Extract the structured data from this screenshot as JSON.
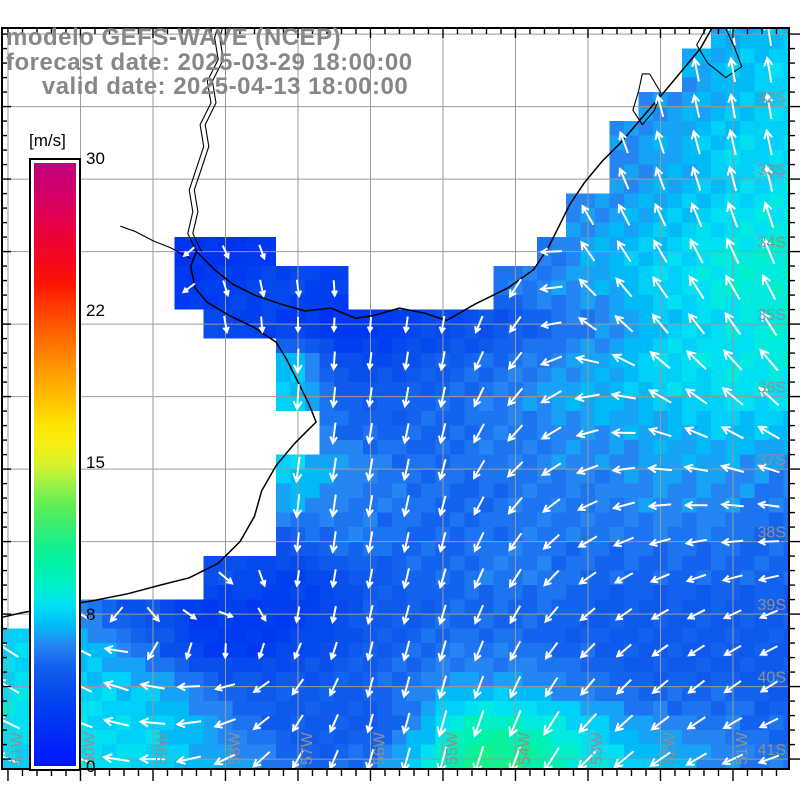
{
  "title": {
    "line1": "modelo GEFS-WAVE (NCEP)",
    "line2": "forecast date: 2025-03-29 18:00:00",
    "line3": "     valid date: 2025-04-13 18:00:00"
  },
  "colorbar": {
    "unit": "[m/s]",
    "min": 0,
    "max": 30,
    "tick_labels": [
      "0",
      "8",
      "15",
      "22",
      "30"
    ],
    "stops": [
      [
        0,
        "#0014FF"
      ],
      [
        2,
        "#0032F2"
      ],
      [
        3,
        "#0040F0"
      ],
      [
        4,
        "#0A4FEC"
      ],
      [
        5,
        "#1463EE"
      ],
      [
        6,
        "#2585F2"
      ],
      [
        6.5,
        "#16A2F5"
      ],
      [
        7,
        "#00BAF7"
      ],
      [
        7.5,
        "#00CFF7"
      ],
      [
        8,
        "#00E0F2"
      ],
      [
        8.5,
        "#00EADF"
      ],
      [
        9,
        "#00EFC8"
      ],
      [
        10,
        "#00F2A8"
      ],
      [
        11,
        "#14F08C"
      ],
      [
        12,
        "#3AEE6E"
      ],
      [
        13,
        "#5FEF55"
      ],
      [
        14,
        "#9CF145"
      ],
      [
        15,
        "#D8F22E"
      ],
      [
        16,
        "#F6EF14"
      ],
      [
        17,
        "#FFE400"
      ],
      [
        18,
        "#FFC800"
      ],
      [
        19,
        "#FFAC00"
      ],
      [
        20,
        "#FF9000"
      ],
      [
        21,
        "#FF7300"
      ],
      [
        22,
        "#FF5500"
      ],
      [
        23,
        "#FF3600"
      ],
      [
        24,
        "#FC1403"
      ],
      [
        25,
        "#F50A18"
      ],
      [
        26,
        "#EE0430"
      ],
      [
        27,
        "#E60048"
      ],
      [
        28,
        "#D80060"
      ],
      [
        29,
        "#CC0070"
      ],
      [
        30,
        "#C1007E"
      ]
    ]
  },
  "map": {
    "lat_labels": [
      {
        "v": -32,
        "t": "32S"
      },
      {
        "v": -33,
        "t": "33S"
      },
      {
        "v": -34,
        "t": "34S"
      },
      {
        "v": -35,
        "t": "35S"
      },
      {
        "v": -36,
        "t": "36S"
      },
      {
        "v": -37,
        "t": "37S"
      },
      {
        "v": -38,
        "t": "38S"
      },
      {
        "v": -39,
        "t": "39S"
      },
      {
        "v": -40,
        "t": "40S"
      },
      {
        "v": -41,
        "t": "41S"
      }
    ],
    "lon_labels": [
      {
        "v": -61,
        "t": "61W"
      },
      {
        "v": -60,
        "t": "60W"
      },
      {
        "v": -59,
        "t": "59W"
      },
      {
        "v": -58,
        "t": "58W"
      },
      {
        "v": -57,
        "t": "57W"
      },
      {
        "v": -56,
        "t": "56W"
      },
      {
        "v": -55,
        "t": "55W"
      },
      {
        "v": -54,
        "t": "54W"
      },
      {
        "v": -53,
        "t": "53W"
      },
      {
        "v": -52,
        "t": "52W"
      },
      {
        "v": -51,
        "t": "51W"
      }
    ],
    "colors": {
      "grid": "#9a9a9a",
      "label": "#8f8f8f",
      "coast": "#000000",
      "arrow": "#ffffff",
      "land": "#ffffff",
      "frame": "#000000"
    }
  },
  "chart_data": {
    "type": "heatmap",
    "title": "modelo GEFS-WAVE (NCEP)",
    "xlabel": "longitude",
    "ylabel": "latitude",
    "unit": "m/s",
    "legend_position": "left colorbar 0-30 m/s",
    "grid": "on",
    "lons": [
      -61,
      -60.5,
      -60,
      -59.5,
      -59,
      -58.5,
      -58,
      -57.5,
      -57,
      -56.5,
      -56,
      -55.5,
      -55,
      -54.5,
      -54,
      -53.5,
      -53,
      -52.5,
      -52,
      -51.5,
      -51,
      -50.5,
      -50
    ],
    "lats": [
      -31,
      -31.5,
      -32,
      -32.5,
      -33,
      -33.5,
      -34,
      -34.5,
      -35,
      -35.5,
      -36,
      -36.5,
      -37,
      -37.5,
      -38,
      -38.5,
      -39,
      -39.5,
      -40,
      -40.5,
      -41
    ],
    "speed": [
      [
        null,
        null,
        null,
        null,
        null,
        null,
        null,
        null,
        null,
        null,
        null,
        null,
        null,
        null,
        null,
        null,
        null,
        null,
        null,
        null,
        6.5,
        7,
        7.5
      ],
      [
        null,
        null,
        null,
        null,
        null,
        null,
        null,
        null,
        null,
        null,
        null,
        null,
        null,
        null,
        null,
        null,
        null,
        null,
        null,
        6.5,
        7,
        7.5,
        7.5
      ],
      [
        null,
        null,
        null,
        null,
        null,
        null,
        null,
        null,
        null,
        null,
        null,
        null,
        null,
        null,
        null,
        null,
        null,
        null,
        6,
        6.5,
        7,
        7.5,
        7.5
      ],
      [
        null,
        null,
        null,
        null,
        null,
        null,
        null,
        null,
        null,
        null,
        null,
        null,
        null,
        null,
        null,
        null,
        null,
        6,
        6.5,
        7,
        7.5,
        7.5,
        8
      ],
      [
        null,
        null,
        null,
        null,
        null,
        null,
        null,
        null,
        null,
        null,
        null,
        null,
        null,
        null,
        null,
        null,
        null,
        6,
        6.5,
        7,
        7.5,
        8,
        8
      ],
      [
        null,
        null,
        null,
        null,
        null,
        null,
        null,
        null,
        null,
        null,
        null,
        null,
        null,
        null,
        null,
        null,
        6,
        6.5,
        7,
        7.5,
        8,
        8,
        8.5
      ],
      [
        null,
        null,
        null,
        null,
        null,
        2,
        2,
        2.5,
        null,
        null,
        null,
        null,
        null,
        null,
        null,
        5.5,
        6.5,
        7,
        7.5,
        8,
        8.5,
        8.5,
        9
      ],
      [
        null,
        null,
        null,
        null,
        null,
        2.5,
        3,
        3.5,
        3.5,
        3,
        null,
        null,
        null,
        null,
        5.5,
        6,
        6.5,
        7,
        7.5,
        8,
        8.5,
        8.5,
        9
      ],
      [
        null,
        null,
        null,
        null,
        null,
        null,
        3.5,
        3,
        2.5,
        2,
        2.5,
        3,
        3.5,
        4,
        4.5,
        5,
        5.5,
        6.5,
        7,
        7.5,
        8,
        8.5,
        9
      ],
      [
        null,
        null,
        null,
        null,
        null,
        null,
        null,
        null,
        7,
        4,
        3.5,
        4,
        4.5,
        5,
        5.5,
        6,
        6.5,
        7,
        7.5,
        8,
        8,
        8.5,
        8.5
      ],
      [
        null,
        null,
        null,
        null,
        null,
        null,
        null,
        null,
        7.5,
        5,
        4.5,
        5,
        5,
        5.5,
        6,
        6.5,
        7,
        7,
        7.5,
        7.5,
        8,
        8,
        8
      ],
      [
        null,
        null,
        null,
        null,
        null,
        null,
        null,
        null,
        null,
        5.5,
        5,
        5,
        5,
        5.5,
        5.5,
        6,
        6,
        6.5,
        6.5,
        7,
        7,
        7,
        7
      ],
      [
        null,
        null,
        null,
        null,
        null,
        null,
        null,
        null,
        7.5,
        6.5,
        6,
        5.5,
        5.5,
        5.5,
        5.5,
        6,
        6,
        6,
        6.5,
        6.5,
        6.5,
        6,
        6
      ],
      [
        null,
        null,
        null,
        null,
        null,
        null,
        null,
        null,
        6.5,
        6,
        5.5,
        5.5,
        5,
        5,
        5.5,
        5.5,
        5.5,
        6,
        6,
        6,
        6,
        5.5,
        5.5
      ],
      [
        null,
        null,
        null,
        null,
        null,
        null,
        null,
        null,
        4.5,
        5.5,
        5.5,
        5,
        5,
        5.5,
        5.5,
        5.5,
        5.5,
        5.5,
        5.5,
        5.5,
        5.5,
        5,
        5
      ],
      [
        null,
        null,
        null,
        null,
        null,
        null,
        4,
        3.5,
        3,
        4,
        4.5,
        5,
        5,
        5.5,
        5.5,
        5.5,
        5,
        5,
        5,
        5,
        5,
        5,
        5
      ],
      [
        null,
        6.5,
        6,
        4.5,
        4,
        3,
        2.5,
        2.5,
        3,
        3.5,
        4.5,
        4.5,
        5,
        5,
        5,
        5,
        4.5,
        4.5,
        4.5,
        4.5,
        4.5,
        4.5,
        4.5
      ],
      [
        7.5,
        7.5,
        7,
        6.5,
        5,
        3.5,
        2.5,
        3,
        3.5,
        4,
        4.5,
        5,
        5.5,
        5.5,
        5.5,
        5,
        5,
        4.5,
        4.5,
        4.5,
        4.5,
        4.5,
        4.5
      ],
      [
        8,
        8,
        7.5,
        7.5,
        7,
        6,
        5,
        4.5,
        4.5,
        4.5,
        5,
        5.5,
        6.5,
        6.5,
        6.5,
        6,
        5.5,
        5,
        5,
        5,
        5,
        4.5,
        4.5
      ],
      [
        8,
        8,
        8,
        7.5,
        7.5,
        7,
        6,
        5,
        4.5,
        4.5,
        4.5,
        5.5,
        8,
        9.5,
        9,
        8.5,
        7.5,
        6.5,
        6,
        5.5,
        5.5,
        5,
        5
      ],
      [
        7.5,
        8,
        8,
        8,
        7.5,
        7,
        6.5,
        6,
        5,
        5,
        5.5,
        7,
        9,
        11.5,
        11,
        9.5,
        8.5,
        7.5,
        7,
        6.5,
        6,
        5.5,
        5.5
      ]
    ],
    "dir_lons": [
      -61,
      -60,
      -59,
      -58,
      -57,
      -56,
      -55,
      -54,
      -53,
      -52,
      -51,
      -50
    ],
    "dir_lats": [
      -31,
      -32,
      -33,
      -34,
      -35,
      -36,
      -37,
      -38,
      -39,
      -40,
      -41
    ],
    "dir_toward_deg": [
      [
        310,
        310,
        310,
        330,
        150,
        155,
        170,
        340,
        345,
        350,
        350,
        352
      ],
      [
        310,
        310,
        310,
        335,
        160,
        165,
        175,
        335,
        340,
        345,
        350,
        350
      ],
      [
        305,
        305,
        310,
        340,
        165,
        170,
        180,
        330,
        335,
        340,
        345,
        348
      ],
      [
        300,
        300,
        305,
        155,
        165,
        175,
        185,
        210,
        325,
        330,
        335,
        340
      ],
      [
        300,
        300,
        300,
        170,
        180,
        185,
        190,
        215,
        305,
        320,
        325,
        330
      ],
      [
        300,
        300,
        295,
        180,
        184,
        188,
        192,
        220,
        260,
        300,
        310,
        315
      ],
      [
        300,
        295,
        290,
        185,
        187,
        190,
        195,
        225,
        250,
        275,
        285,
        290
      ],
      [
        300,
        295,
        220,
        150,
        186,
        190,
        195,
        215,
        240,
        255,
        265,
        270
      ],
      [
        305,
        300,
        140,
        110,
        190,
        193,
        197,
        210,
        230,
        240,
        245,
        250
      ],
      [
        300,
        295,
        280,
        255,
        215,
        195,
        196,
        205,
        220,
        230,
        235,
        240
      ],
      [
        292,
        288,
        270,
        245,
        210,
        196,
        195,
        200,
        225,
        235,
        245,
        255
      ]
    ]
  },
  "geo": {
    "coast": [
      [
        -51.28,
        -30.9
      ],
      [
        -51.45,
        -31.2
      ],
      [
        -51.7,
        -31.5
      ],
      [
        -51.95,
        -31.8
      ],
      [
        -52.25,
        -32.15
      ],
      [
        -52.55,
        -32.5
      ],
      [
        -52.8,
        -32.75
      ],
      [
        -53.05,
        -33.05
      ],
      [
        -53.25,
        -33.35
      ],
      [
        -53.4,
        -33.65
      ],
      [
        -53.55,
        -33.95
      ],
      [
        -53.75,
        -34.25
      ],
      [
        -54.1,
        -34.5
      ],
      [
        -54.55,
        -34.72
      ],
      [
        -54.95,
        -34.95
      ],
      [
        -55.25,
        -34.85
      ],
      [
        -55.6,
        -34.78
      ],
      [
        -55.95,
        -34.88
      ],
      [
        -56.2,
        -34.92
      ],
      [
        -56.55,
        -34.78
      ],
      [
        -56.9,
        -34.82
      ],
      [
        -57.25,
        -34.72
      ],
      [
        -57.6,
        -34.6
      ],
      [
        -57.9,
        -34.45
      ],
      [
        -58.15,
        -34.25
      ],
      [
        -58.4,
        -34.0
      ],
      [
        -58.48,
        -34.2
      ],
      [
        -58.42,
        -34.5
      ],
      [
        -58.25,
        -34.7
      ],
      [
        -57.95,
        -34.88
      ],
      [
        -57.6,
        -35.05
      ],
      [
        -57.3,
        -35.25
      ],
      [
        -57.15,
        -35.5
      ],
      [
        -57.0,
        -35.8
      ],
      [
        -56.85,
        -36.1
      ],
      [
        -56.75,
        -36.35
      ],
      [
        -56.9,
        -36.5
      ],
      [
        -57.05,
        -36.65
      ],
      [
        -57.3,
        -36.95
      ],
      [
        -57.5,
        -37.3
      ],
      [
        -57.6,
        -37.65
      ],
      [
        -57.8,
        -38.0
      ],
      [
        -58.1,
        -38.3
      ],
      [
        -58.5,
        -38.5
      ],
      [
        -58.9,
        -38.6
      ],
      [
        -59.35,
        -38.72
      ],
      [
        -59.85,
        -38.82
      ],
      [
        -60.35,
        -38.9
      ],
      [
        -60.8,
        -38.98
      ],
      [
        -61.15,
        -39.06
      ]
    ],
    "rivers": [
      [
        [
          -58.4,
          -34.0
        ],
        [
          -58.52,
          -33.75
        ],
        [
          -58.45,
          -33.45
        ],
        [
          -58.5,
          -33.15
        ],
        [
          -58.4,
          -32.85
        ],
        [
          -58.3,
          -32.55
        ],
        [
          -58.35,
          -32.25
        ],
        [
          -58.2,
          -31.95
        ],
        [
          -58.25,
          -31.65
        ],
        [
          -58.1,
          -31.35
        ],
        [
          -58.15,
          -31.05
        ],
        [
          -58.1,
          -30.88
        ]
      ],
      [
        [
          -58.33,
          -34.0
        ],
        [
          -58.45,
          -33.75
        ],
        [
          -58.38,
          -33.45
        ],
        [
          -58.43,
          -33.15
        ],
        [
          -58.33,
          -32.85
        ],
        [
          -58.23,
          -32.55
        ],
        [
          -58.28,
          -32.25
        ],
        [
          -58.13,
          -31.95
        ],
        [
          -58.18,
          -31.65
        ],
        [
          -58.03,
          -31.35
        ],
        [
          -58.08,
          -31.05
        ],
        [
          -58.03,
          -30.88
        ]
      ],
      [
        [
          -58.48,
          -34.1
        ],
        [
          -58.75,
          -33.95
        ],
        [
          -59.0,
          -33.85
        ],
        [
          -59.25,
          -33.72
        ],
        [
          -59.45,
          -33.65
        ]
      ]
    ],
    "lagoons": [
      [
        [
          -51.35,
          -30.88
        ],
        [
          -51.5,
          -31.15
        ],
        [
          -51.35,
          -31.4
        ],
        [
          -51.1,
          -31.6
        ],
        [
          -50.88,
          -31.45
        ],
        [
          -50.98,
          -31.18
        ],
        [
          -51.12,
          -30.88
        ]
      ],
      [
        [
          -52.15,
          -31.55
        ],
        [
          -52.0,
          -31.8
        ],
        [
          -52.08,
          -32.05
        ],
        [
          -52.25,
          -32.25
        ],
        [
          -52.38,
          -32.05
        ],
        [
          -52.3,
          -31.78
        ],
        [
          -52.25,
          -31.55
        ],
        [
          -52.15,
          -31.55
        ]
      ]
    ]
  }
}
